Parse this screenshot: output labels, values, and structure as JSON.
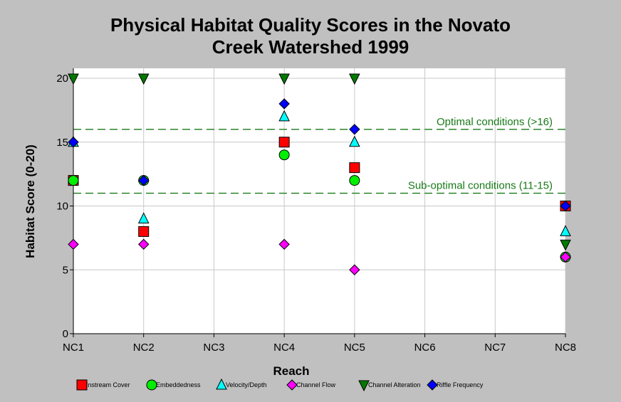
{
  "chart_data": {
    "type": "scatter",
    "title_lines": [
      "Physical Habitat Quality Scores in the Novato",
      "Creek Watershed 1999"
    ],
    "xlabel": "Reach",
    "ylabel": "Habitat Score (0-20)",
    "categories": [
      "NC1",
      "NC2",
      "NC3",
      "NC4",
      "NC5",
      "NC6",
      "NC7",
      "NC8"
    ],
    "ylim": [
      0,
      20
    ],
    "yticks": [
      0,
      5,
      10,
      15,
      20
    ],
    "grid": true,
    "legend_position": "bottom",
    "reference_lines": [
      {
        "value": 16,
        "label": "Optimal conditions (>16)",
        "color": "#1a7a1a"
      },
      {
        "value": 11,
        "label": "Sub-optimal conditions (11-15)",
        "color": "#1a7a1a"
      }
    ],
    "series": [
      {
        "name": "Instream Cover",
        "marker": "square",
        "color": "#ff0000",
        "x": [
          "NC1",
          "NC2",
          "NC4",
          "NC5",
          "NC8"
        ],
        "values": [
          12,
          8,
          15,
          13,
          10
        ]
      },
      {
        "name": "Embeddedness",
        "marker": "circle",
        "color": "#00ee00",
        "x": [
          "NC1",
          "NC2",
          "NC4",
          "NC5",
          "NC8"
        ],
        "values": [
          12,
          12,
          14,
          12,
          6
        ]
      },
      {
        "name": "Velocity/Depth",
        "marker": "triangle-up",
        "color": "#00ffff",
        "x": [
          "NC1",
          "NC2",
          "NC4",
          "NC5",
          "NC8"
        ],
        "values": [
          15,
          9,
          17,
          15,
          8
        ]
      },
      {
        "name": "Channel Flow",
        "marker": "diamond",
        "color": "#ff00ff",
        "x": [
          "NC1",
          "NC2",
          "NC4",
          "NC5",
          "NC8"
        ],
        "values": [
          7,
          7,
          7,
          5,
          6
        ]
      },
      {
        "name": "Channel Alteration",
        "marker": "triangle-down",
        "color": "#007a00",
        "x": [
          "NC1",
          "NC2",
          "NC4",
          "NC5",
          "NC8"
        ],
        "values": [
          20,
          20,
          20,
          20,
          7
        ]
      },
      {
        "name": "Riffle Frequency",
        "marker": "diamond",
        "color": "#0000ff",
        "x": [
          "NC1",
          "NC2",
          "NC4",
          "NC5",
          "NC8"
        ],
        "values": [
          15,
          12,
          18,
          16,
          10
        ]
      }
    ]
  }
}
